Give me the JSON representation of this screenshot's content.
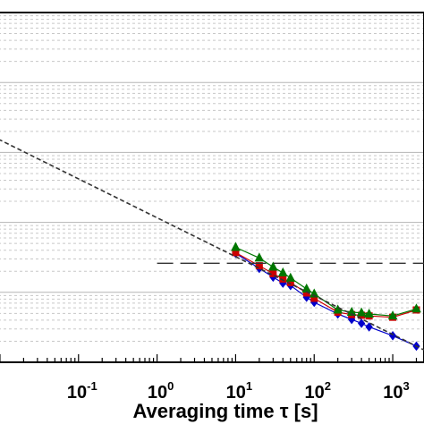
{
  "chart_data": {
    "type": "line",
    "xlabel": "Averaging time τ [s]",
    "xscale": "log",
    "yscale": "log",
    "xlim": [
      0.0095,
      2500
    ],
    "ylim": [
      1e-06,
      0.1
    ],
    "grid": true,
    "x_tick_labels": [
      {
        "value": 0.1,
        "base": "10",
        "exp": "-1"
      },
      {
        "value": 1,
        "base": "10",
        "exp": "0"
      },
      {
        "value": 10,
        "base": "10",
        "exp": "1"
      },
      {
        "value": 100,
        "base": "10",
        "exp": "2"
      },
      {
        "value": 1000,
        "base": "10",
        "exp": "3"
      }
    ],
    "series": [
      {
        "color": "#0000cc",
        "marker": "diamond",
        "line": "solid",
        "x": [
          10,
          20,
          30,
          40,
          50,
          80,
          100,
          200,
          300,
          400,
          500,
          1000,
          2000
        ],
        "y": [
          3.6e-05,
          2.2e-05,
          1.65e-05,
          1.35e-05,
          1.25e-05,
          8.5e-06,
          7.2e-06,
          4.9e-06,
          4.1e-06,
          3.6e-06,
          3.2e-06,
          2.4e-06,
          1.7e-06
        ]
      },
      {
        "color": "#cc0000",
        "marker": "square",
        "line": "solid",
        "x": [
          10,
          20,
          30,
          40,
          50,
          80,
          100,
          200,
          300,
          400,
          500,
          1000,
          2000
        ],
        "y": [
          3.7e-05,
          2.4e-05,
          1.85e-05,
          1.55e-05,
          1.38e-05,
          9.8e-06,
          8.2e-06,
          5.2e-06,
          4.8e-06,
          4.7e-06,
          4.6e-06,
          4.4e-06,
          5.6e-06
        ]
      },
      {
        "color": "#007700",
        "marker": "triangle",
        "line": "solid",
        "x": [
          10,
          20,
          30,
          40,
          50,
          80,
          100,
          200,
          300,
          400,
          500,
          1000,
          2000
        ],
        "y": [
          4.4e-05,
          3.1e-05,
          2.3e-05,
          1.9e-05,
          1.6e-05,
          1.12e-05,
          9.5e-06,
          5.6e-06,
          5.2e-06,
          5.1e-06,
          4.9e-06,
          4.6e-06,
          5.8e-06
        ]
      },
      {
        "color": "#333333",
        "marker": "none",
        "line": "dashed",
        "x": [
          0.0095,
          2500
        ],
        "y": [
          0.00155,
          1.5e-06
        ]
      },
      {
        "color": "#333333",
        "marker": "none",
        "line": "longdash",
        "x": [
          1,
          2500
        ],
        "y": [
          2.6e-05,
          2.6e-05
        ]
      }
    ]
  }
}
